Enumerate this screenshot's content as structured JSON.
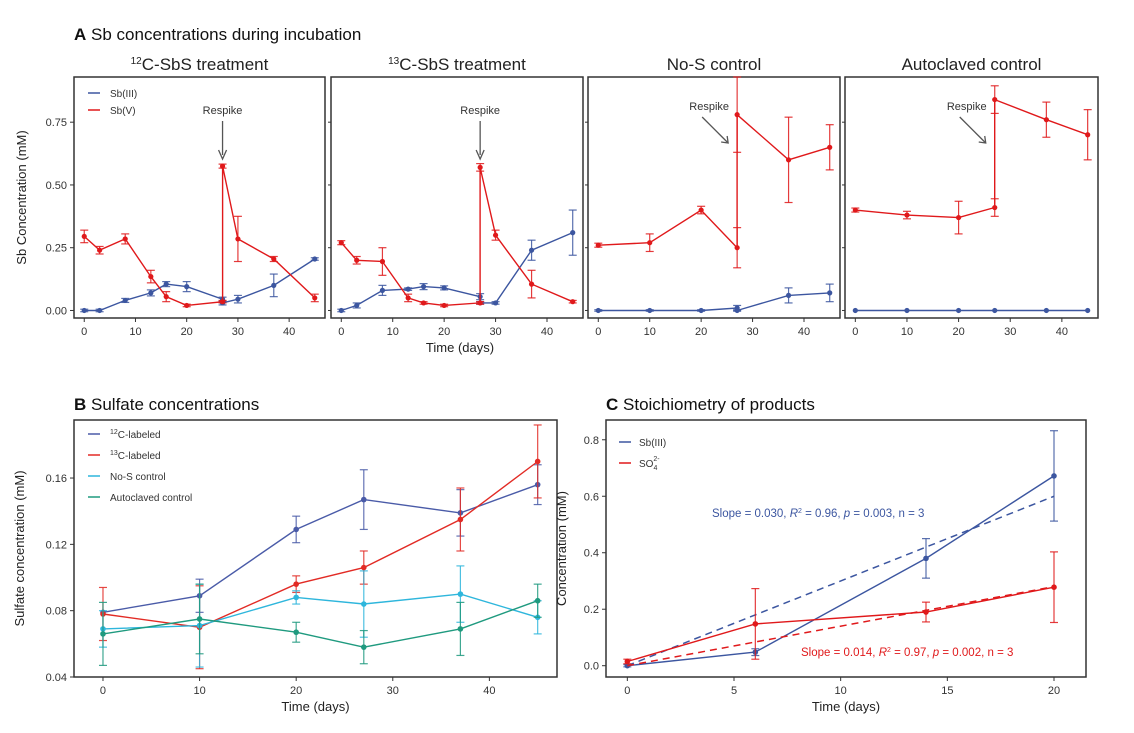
{
  "figure": {
    "panel_a_letter": "A",
    "panel_a_title": "Sb concentrations during incubation",
    "panel_b_letter": "B",
    "panel_b_title": "Sulfate concentrations",
    "panel_c_letter": "C",
    "panel_c_title": "Stoichiometry of products"
  },
  "colors": {
    "sb3": "#3c56a0",
    "sb5": "#e0191b",
    "c12": "#4a5ba8",
    "c13": "#e22b25",
    "nos": "#2eb6dc",
    "auto": "#1f9a7f"
  },
  "chart_data": [
    {
      "type": "line",
      "panel": "A",
      "title_prefix": "12",
      "title": "C-SbS treatment",
      "xlabel": "Time (days)",
      "ylabel": "Sb Concentration (mM)",
      "xlim": [
        -2,
        47
      ],
      "ylim": [
        -0.03,
        0.93
      ],
      "xticks": [
        0,
        10,
        20,
        30,
        40
      ],
      "yticks": [
        0.0,
        0.25,
        0.5,
        0.75
      ],
      "ytick_labels": [
        "0.00",
        "0.25",
        "0.50",
        "0.75"
      ],
      "legend": [
        "Sb(III)",
        "Sb(V)"
      ],
      "legend_position": "top-left",
      "annotation": {
        "text": "Respike",
        "x": 27,
        "direction": "down"
      },
      "series": [
        {
          "name": "Sb(III)",
          "color_key": "sb3",
          "x": [
            0,
            3,
            8,
            13,
            16,
            20,
            27,
            27,
            30,
            37,
            45
          ],
          "y": [
            0.0,
            0.0,
            0.04,
            0.07,
            0.105,
            0.095,
            0.045,
            0.03,
            0.045,
            0.1,
            0.205
          ],
          "err": [
            0.005,
            0.005,
            0.008,
            0.012,
            0.01,
            0.02,
            0.008,
            0.008,
            0.015,
            0.045,
            0.005
          ]
        },
        {
          "name": "Sb(V)",
          "color_key": "sb5",
          "x": [
            0,
            3,
            8,
            13,
            16,
            20,
            27,
            27,
            30,
            37,
            45
          ],
          "y": [
            0.295,
            0.24,
            0.285,
            0.135,
            0.055,
            0.02,
            0.035,
            0.575,
            0.285,
            0.205,
            0.05
          ],
          "err": [
            0.025,
            0.015,
            0.02,
            0.025,
            0.02,
            0.005,
            0.005,
            0.008,
            0.09,
            0.01,
            0.015
          ]
        }
      ]
    },
    {
      "type": "line",
      "panel": "A",
      "title_prefix": "13",
      "title": "C-SbS treatment",
      "xlim": [
        -2,
        47
      ],
      "ylim": [
        -0.03,
        0.93
      ],
      "xticks": [
        0,
        10,
        20,
        30,
        40
      ],
      "annotation": {
        "text": "Respike",
        "x": 27,
        "direction": "down"
      },
      "series": [
        {
          "name": "Sb(III)",
          "color_key": "sb3",
          "x": [
            0,
            3,
            8,
            13,
            16,
            20,
            27,
            27,
            30,
            37,
            45
          ],
          "y": [
            0.0,
            0.02,
            0.08,
            0.085,
            0.095,
            0.09,
            0.055,
            0.03,
            0.03,
            0.24,
            0.31
          ],
          "err": [
            0.005,
            0.01,
            0.02,
            0.005,
            0.012,
            0.008,
            0.012,
            0.005,
            0.005,
            0.04,
            0.09
          ]
        },
        {
          "name": "Sb(V)",
          "color_key": "sb5",
          "x": [
            0,
            3,
            8,
            13,
            16,
            20,
            27,
            27,
            30,
            37,
            45
          ],
          "y": [
            0.27,
            0.2,
            0.195,
            0.05,
            0.03,
            0.02,
            0.03,
            0.57,
            0.3,
            0.105,
            0.035
          ],
          "err": [
            0.008,
            0.015,
            0.055,
            0.015,
            0.005,
            0.005,
            0.005,
            0.015,
            0.02,
            0.055,
            0.005
          ]
        }
      ]
    },
    {
      "type": "line",
      "panel": "A",
      "title_prefix": "",
      "title": "No-S control",
      "xlim": [
        -2,
        47
      ],
      "ylim": [
        -0.03,
        0.93
      ],
      "xticks": [
        0,
        10,
        20,
        30,
        40
      ],
      "annotation": {
        "text": "Respike",
        "x": 27,
        "direction": "diagonal"
      },
      "series": [
        {
          "name": "Sb(III)",
          "color_key": "sb3",
          "x": [
            0,
            10,
            20,
            27,
            27,
            37,
            45
          ],
          "y": [
            0.0,
            0.0,
            0.0,
            0.01,
            0.0,
            0.06,
            0.07
          ],
          "err": [
            0.003,
            0.003,
            0.003,
            0.01,
            0.003,
            0.03,
            0.035
          ]
        },
        {
          "name": "Sb(V)",
          "color_key": "sb5",
          "x": [
            0,
            10,
            20,
            27,
            27,
            37,
            45
          ],
          "y": [
            0.26,
            0.27,
            0.4,
            0.25,
            0.78,
            0.6,
            0.65
          ],
          "err": [
            0.008,
            0.035,
            0.015,
            0.08,
            0.15,
            0.17,
            0.09
          ]
        }
      ]
    },
    {
      "type": "line",
      "panel": "A",
      "title_prefix": "",
      "title": "Autoclaved control",
      "xlim": [
        -2,
        47
      ],
      "ylim": [
        -0.03,
        0.93
      ],
      "xticks": [
        0,
        10,
        20,
        30,
        40
      ],
      "annotation": {
        "text": "Respike",
        "x": 27,
        "direction": "diagonal"
      },
      "series": [
        {
          "name": "Sb(III)",
          "color_key": "sb3",
          "x": [
            0,
            10,
            20,
            27,
            37,
            45
          ],
          "y": [
            0.0,
            0.0,
            0.0,
            0.0,
            0.0,
            0.0
          ],
          "err": [
            0,
            0,
            0,
            0,
            0,
            0
          ]
        },
        {
          "name": "Sb(V)",
          "color_key": "sb5",
          "x": [
            0,
            10,
            20,
            27,
            27,
            37,
            45
          ],
          "y": [
            0.4,
            0.38,
            0.37,
            0.41,
            0.84,
            0.76,
            0.7
          ],
          "err": [
            0.008,
            0.015,
            0.065,
            0.035,
            0.055,
            0.07,
            0.1
          ]
        }
      ]
    },
    {
      "type": "line",
      "panel": "B",
      "title": "Sulfate concentrations",
      "xlabel": "Time (days)",
      "ylabel": "Sulfate concentration (mM)",
      "xlim": [
        -3,
        47
      ],
      "ylim": [
        0.04,
        0.195
      ],
      "xticks": [
        0,
        10,
        20,
        30,
        40
      ],
      "yticks": [
        0.04,
        0.08,
        0.12,
        0.16
      ],
      "ytick_labels": [
        "0.04",
        "0.08",
        "0.12",
        "0.16"
      ],
      "legend": [
        "12C-labeled",
        "13C-labeled",
        "No-S control",
        "Autoclaved control"
      ],
      "legend_position": "top-left",
      "series": [
        {
          "name": "12C-labeled",
          "sup": "12",
          "label": "C-labeled",
          "color_key": "c12",
          "x": [
            0,
            10,
            20,
            27,
            37,
            45
          ],
          "y": [
            0.079,
            0.089,
            0.129,
            0.147,
            0.139,
            0.156
          ],
          "err": [
            0.0,
            0.01,
            0.008,
            0.018,
            0.014,
            0.012
          ]
        },
        {
          "name": "13C-labeled",
          "sup": "13",
          "label": "C-labeled",
          "color_key": "c13",
          "x": [
            0,
            10,
            20,
            27,
            37,
            45
          ],
          "y": [
            0.078,
            0.07,
            0.096,
            0.106,
            0.135,
            0.17
          ],
          "err": [
            0.016,
            0.025,
            0.005,
            0.01,
            0.019,
            0.022
          ]
        },
        {
          "name": "No-S control",
          "sup": "",
          "label": "No-S control",
          "color_key": "nos",
          "x": [
            0,
            10,
            20,
            27,
            37,
            45
          ],
          "y": [
            0.069,
            0.071,
            0.088,
            0.084,
            0.09,
            0.076
          ],
          "err": [
            0.011,
            0.025,
            0.004,
            0.02,
            0.017,
            0.01
          ]
        },
        {
          "name": "Autoclaved control",
          "sup": "",
          "label": "Autoclaved control",
          "color_key": "auto",
          "x": [
            0,
            10,
            20,
            27,
            37,
            45
          ],
          "y": [
            0.066,
            0.075,
            0.067,
            0.058,
            0.069,
            0.086
          ],
          "err": [
            0.019,
            0.021,
            0.006,
            0.01,
            0.016,
            0.01
          ]
        }
      ]
    },
    {
      "type": "line",
      "panel": "C",
      "title": "Stoichiometry of products",
      "xlabel": "Time (days)",
      "ylabel": "Concentration (mM)",
      "xlim": [
        -1,
        21.5
      ],
      "ylim": [
        -0.04,
        0.87
      ],
      "xticks": [
        0,
        5,
        10,
        15,
        20
      ],
      "yticks": [
        0.0,
        0.2,
        0.4,
        0.6,
        0.8
      ],
      "ytick_labels": [
        "0.0",
        "0.2",
        "0.4",
        "0.6",
        "0.8"
      ],
      "legend": [
        "Sb(III)",
        "SO4 2-"
      ],
      "legend_position": "top-left",
      "series": [
        {
          "name": "Sb(III)",
          "color_key": "sb3",
          "x": [
            0,
            6,
            14,
            20
          ],
          "y": [
            0.0,
            0.048,
            0.38,
            0.672
          ],
          "err": [
            0.004,
            0.012,
            0.07,
            0.16
          ],
          "fit": {
            "slope": 0.03,
            "intercept": 0.0,
            "x0": 0,
            "x1": 20
          },
          "annotation": "Slope = 0.030, R² = 0.96, p = 0.003, n = 3"
        },
        {
          "name": "SO4 2-",
          "color_key": "sb5",
          "x": [
            0,
            6,
            14,
            20
          ],
          "y": [
            0.015,
            0.148,
            0.19,
            0.278
          ],
          "err": [
            0.008,
            0.125,
            0.035,
            0.125
          ],
          "fit": {
            "slope": 0.014,
            "intercept": 0.0,
            "x0": 0,
            "x1": 20
          },
          "annotation": "Slope = 0.014, R² = 0.97, p = 0.002, n = 3"
        }
      ],
      "legend_labels": {
        "sb3": "Sb(III)",
        "so4_base": "SO",
        "so4_sub": "4",
        "so4_sup": "2-"
      },
      "annotation_parts": {
        "sb3": [
          "Slope = 0.030, ",
          "R",
          "2",
          " = 0.96, ",
          "p",
          " = 0.003, n = 3"
        ],
        "so4": [
          "Slope = 0.014, ",
          "R",
          "2",
          " = 0.97, ",
          "p",
          " = 0.002, n = 3"
        ]
      }
    }
  ]
}
